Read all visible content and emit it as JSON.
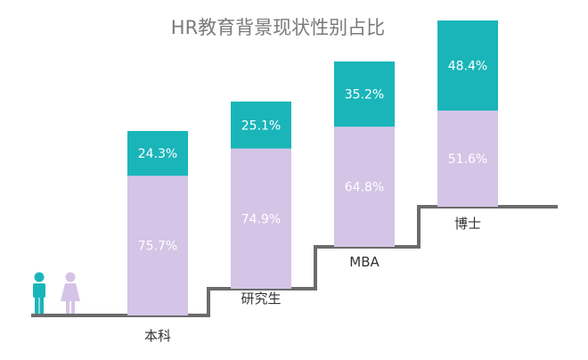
{
  "chart_data": {
    "type": "bar",
    "stacked": true,
    "percent": true,
    "title": "HR教育背景现状性别占比",
    "categories": [
      "本科",
      "研究生",
      "MBA",
      "博士"
    ],
    "series": [
      {
        "name": "男",
        "color": "#1ab5b9",
        "values": [
          24.3,
          25.1,
          35.2,
          48.4
        ]
      },
      {
        "name": "女",
        "color": "#d4c4e6",
        "values": [
          75.7,
          74.9,
          64.8,
          51.6
        ]
      }
    ],
    "data_labels": {
      "top": [
        "24.3%",
        "25.1%",
        "35.2%",
        "48.4%"
      ],
      "bottom": [
        "75.7%",
        "74.9%",
        "64.8%",
        "51.6%"
      ]
    },
    "xlabel": "",
    "ylabel": "",
    "ylim": [
      0,
      100
    ],
    "grid": false,
    "legend": "icons-bottom-left",
    "legend_icons": [
      {
        "name": "male-person-icon",
        "color": "#1ab5b9"
      },
      {
        "name": "female-person-icon",
        "color": "#d4c4e6"
      }
    ],
    "stair_color": "#6b6b6b"
  }
}
